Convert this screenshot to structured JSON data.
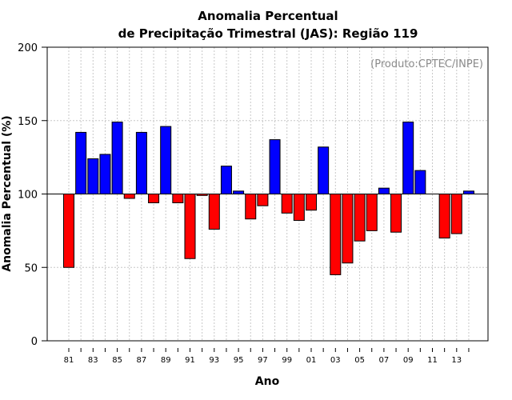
{
  "chart_data": {
    "type": "bar",
    "title": "Anomalia Percentual",
    "subtitle": "de Precipitação Trimestral (JAS): Região 119",
    "xlabel": "Ano",
    "ylabel": "Anomalia Percentual (%)",
    "credit": "(Produto:CPTEC/INPE)",
    "ylim": [
      0,
      200
    ],
    "yticks": [
      "0",
      "50",
      "100",
      "150",
      "200"
    ],
    "baseline": 100,
    "grid": true,
    "colors": {
      "above": "#0000ff",
      "below": "#ff0000",
      "outline": "#000000",
      "grid": "#c8c8c8"
    },
    "categories": [
      "1981",
      "1982",
      "1983",
      "1984",
      "1985",
      "1986",
      "1987",
      "1988",
      "1989",
      "1990",
      "1991",
      "1992",
      "1993",
      "1994",
      "1995",
      "1996",
      "1997",
      "1998",
      "1999",
      "2000",
      "2001",
      "2002",
      "2003",
      "2004",
      "2005",
      "2006",
      "2007",
      "2008",
      "2009",
      "2010",
      "2011",
      "2012",
      "2013",
      "2014"
    ],
    "xtick_labels": [
      "81",
      "",
      "83",
      "",
      "85",
      "",
      "87",
      "",
      "89",
      "",
      "91",
      "",
      "93",
      "",
      "95",
      "",
      "97",
      "",
      "99",
      "",
      "01",
      "",
      "03",
      "",
      "05",
      "",
      "07",
      "",
      "09",
      "",
      "11",
      "",
      "13",
      ""
    ],
    "values": [
      50,
      142,
      124,
      127,
      149,
      97,
      142,
      94,
      146,
      94,
      56,
      99,
      76,
      119,
      102,
      83,
      92,
      137,
      87,
      82,
      89,
      132,
      45,
      53,
      68,
      75,
      104,
      74,
      149,
      116,
      100,
      70,
      73,
      102
    ]
  }
}
